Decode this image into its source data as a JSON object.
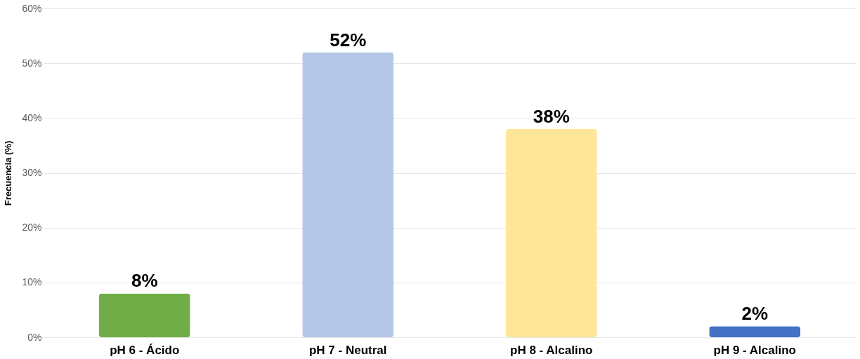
{
  "chart_data": {
    "type": "bar",
    "ylabel": "Frecuencia (%)",
    "categories": [
      "pH 6 - Ácido",
      "pH 7 - Neutral",
      "pH 8 - Alcalino",
      "pH 9 - Alcalino"
    ],
    "values": [
      8,
      52,
      38,
      2
    ],
    "colors": [
      "#70ad47",
      "#b4c7e7",
      "#ffe699",
      "#4472c4"
    ],
    "value_labels": [
      "8%",
      "52%",
      "38%",
      "2%"
    ],
    "ylim": [
      0,
      60
    ],
    "yticks": [
      {
        "value": 0,
        "label": "0%"
      },
      {
        "value": 10,
        "label": "10%"
      },
      {
        "value": 20,
        "label": "20%"
      },
      {
        "value": 30,
        "label": "30%"
      },
      {
        "value": 40,
        "label": "40%"
      },
      {
        "value": 50,
        "label": "50%"
      },
      {
        "value": 60,
        "label": "60%"
      }
    ],
    "grid": "y"
  }
}
